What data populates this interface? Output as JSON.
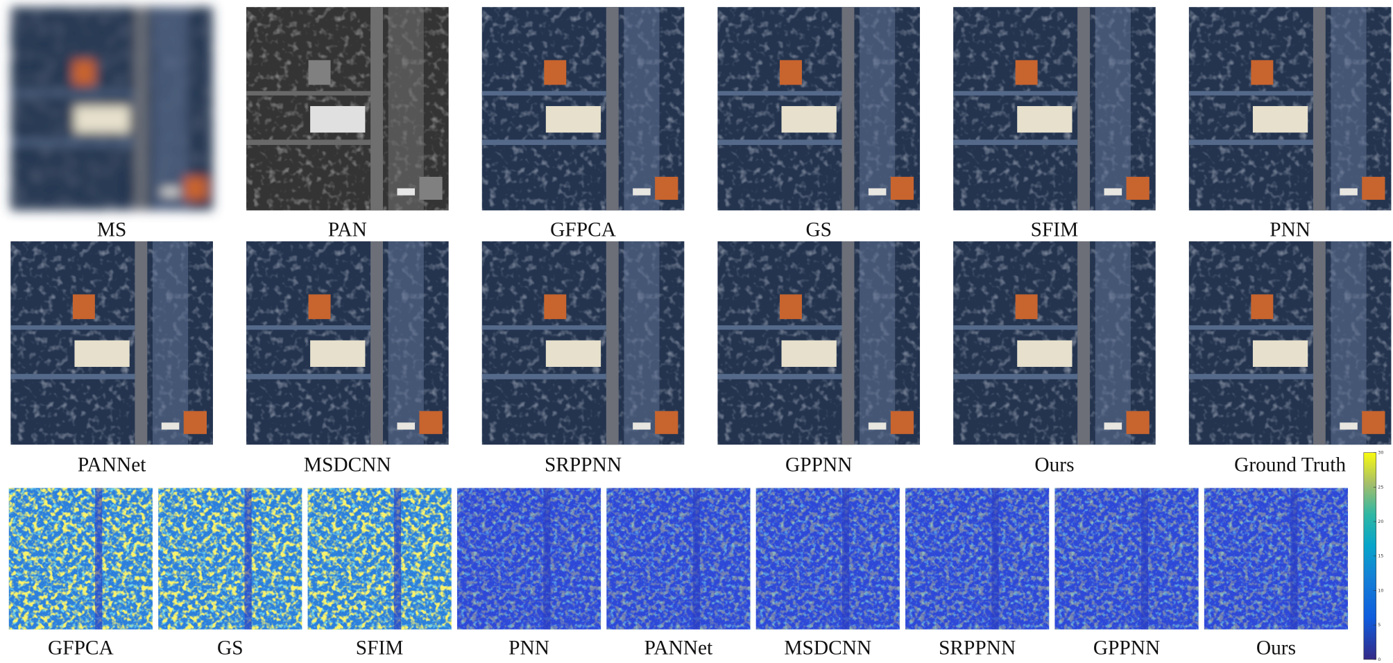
{
  "row1": [
    "MS",
    "PAN",
    "GFPCA",
    "GS",
    "SFIM",
    "PNN"
  ],
  "row2": [
    "PANNet",
    "MSDCNN",
    "SRPPNN",
    "GPPNN",
    "Ours",
    "Ground Truth"
  ],
  "error_maps": [
    "GFPCA",
    "GS",
    "SFIM",
    "PNN",
    "PANNet",
    "MSDCNN",
    "SRPPNN",
    "GPPNN",
    "Ours"
  ],
  "colorbar": {
    "lim": [
      0,
      30
    ],
    "ticks": [
      0,
      5,
      10,
      15,
      20,
      25,
      30
    ]
  }
}
